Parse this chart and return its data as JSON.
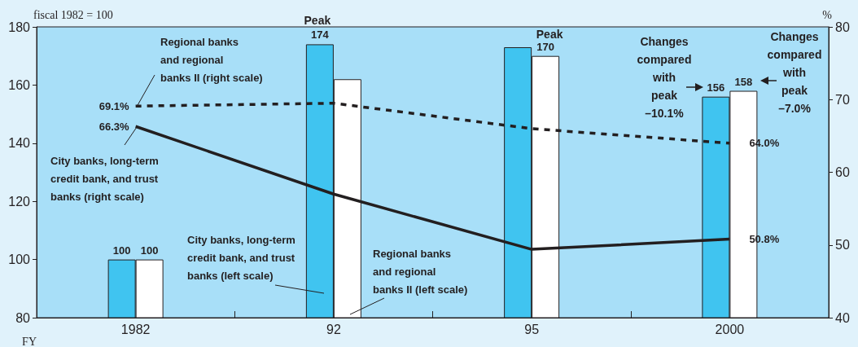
{
  "chart_data": {
    "type": "bar",
    "ylabel": "fiscal 1982 = 100",
    "y2label": "%",
    "xlabel": "FY",
    "categories": [
      "1982",
      "92",
      "95",
      "2000"
    ],
    "ylim": [
      80,
      180
    ],
    "yticks": [
      80,
      100,
      120,
      140,
      160,
      180
    ],
    "y2lim": [
      40,
      80
    ],
    "y2ticks": [
      40,
      50,
      60,
      70,
      80
    ],
    "grid": false,
    "legend": false,
    "marker": "none",
    "series": [
      {
        "name": "City banks, long-term credit bank, and trust banks (left scale)",
        "color": "#40c4f0",
        "values": [
          100,
          174,
          173,
          156
        ],
        "value_labels": [
          "100",
          "174",
          null,
          "156"
        ]
      },
      {
        "name": "Regional banks and regional banks II (left scale)",
        "color": "#ffffff",
        "values": [
          100,
          162,
          170,
          158
        ],
        "value_labels": [
          "100",
          null,
          "170",
          "158"
        ]
      },
      {
        "name": "Regional banks and regional banks II (right scale)",
        "type": "line",
        "axis": "y2",
        "line_style": "dashed",
        "color": "#231f20",
        "values": [
          69.1,
          69.5,
          66.0,
          64.0
        ],
        "value_labels": [
          "69.1%",
          null,
          null,
          "64.0%"
        ]
      },
      {
        "name": "City banks, long-term credit bank, and trust banks (right scale)",
        "type": "line",
        "axis": "y2",
        "line_style": "solid",
        "color": "#231f20",
        "values": [
          66.3,
          57.0,
          49.4,
          50.8
        ],
        "value_labels": [
          "66.3%",
          null,
          null,
          "50.8%"
        ]
      }
    ],
    "annotations": [
      {
        "text": "Peak",
        "x": "92",
        "y": 174
      },
      {
        "text": "Peak",
        "x": "95",
        "y": 170
      },
      "Changes\ncompared\nwith\npeak\n–10.1%",
      "Changes\ncompared\nwith\npeak\n–7.0%"
    ]
  }
}
